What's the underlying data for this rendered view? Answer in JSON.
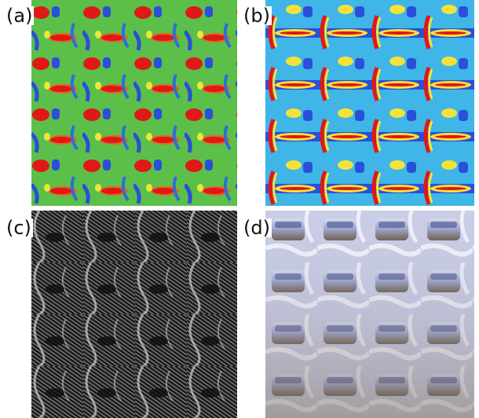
{
  "figure": {
    "panels": [
      {
        "label": "(a)",
        "rendering": "heatmap"
      },
      {
        "label": "(b)",
        "rendering": "heatmap"
      },
      {
        "label": "(c)",
        "rendering": "grayscale-zebra-lines"
      },
      {
        "label": "(d)",
        "rendering": "chrome-reflection"
      }
    ],
    "colors": {
      "heat_green": "#5cbf4a",
      "heat_red": "#e01818",
      "heat_yellow": "#f4e23a",
      "heat_blue": "#2b4fd8",
      "heat_cyan": "#3fb5e8",
      "gray_dark": "#1b1b1b",
      "chrome_light": "#d9dcef",
      "chrome_brown": "#6c5a4a"
    }
  }
}
